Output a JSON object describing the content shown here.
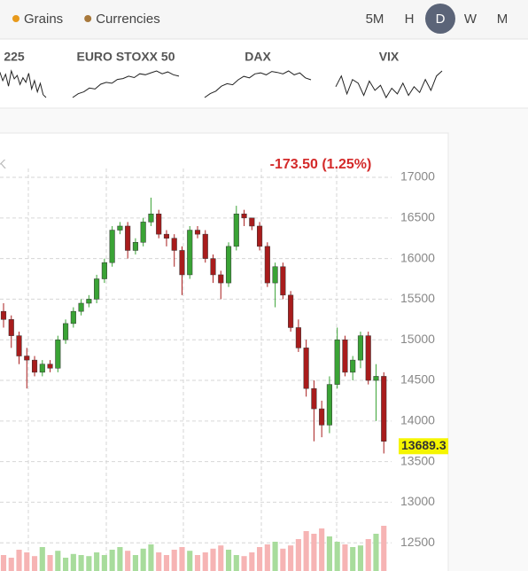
{
  "toolbar": {
    "legend": [
      {
        "label": "Grains",
        "color": "#e89a1c"
      },
      {
        "label": "Currencies",
        "color": "#a8793c"
      }
    ],
    "intervals": [
      "5M",
      "H",
      "D",
      "W",
      "M"
    ],
    "selected": "D"
  },
  "markets": [
    {
      "name": "225",
      "values": [
        50,
        62,
        40,
        70,
        55,
        66,
        45,
        72,
        58,
        64,
        48,
        60,
        52,
        68,
        40,
        55,
        35,
        50,
        30,
        25
      ]
    },
    {
      "name": "EURO STOXX 50",
      "values": [
        10,
        18,
        22,
        30,
        28,
        38,
        42,
        40,
        48,
        50,
        55,
        52,
        60,
        58,
        62,
        66,
        60,
        64,
        58,
        55
      ]
    },
    {
      "name": "DAX",
      "values": [
        12,
        20,
        25,
        35,
        40,
        38,
        48,
        55,
        52,
        60,
        62,
        58,
        65,
        63,
        60,
        66,
        58,
        62,
        52,
        48
      ]
    },
    {
      "name": "VIX",
      "values": [
        40,
        55,
        30,
        50,
        45,
        28,
        48,
        35,
        42,
        25,
        38,
        30,
        45,
        28,
        40,
        32,
        50,
        35,
        55,
        62
      ]
    }
  ],
  "chart_data": {
    "type": "candlestick",
    "title": "K",
    "change": "-173.50 (1.25%)",
    "last_price": 13689.3,
    "up_color": "#3aa335",
    "down_color": "#a81c1c",
    "up_volume_color": "#a8dc9c",
    "down_volume_color": "#f6b4b4",
    "ylim": [
      12153,
      17546
    ],
    "yticks": [
      12500,
      13000,
      13500,
      14000,
      14500,
      15000,
      15500,
      16000,
      16500,
      17000
    ],
    "grid": true,
    "volume_lim": [
      0,
      100
    ],
    "open": [
      15350,
      15250,
      15050,
      14800,
      14750,
      14600,
      14700,
      14650,
      15000,
      15200,
      15350,
      15450,
      15500,
      15750,
      15950,
      16350,
      16400,
      16100,
      16200,
      16450,
      16550,
      16300,
      16250,
      16100,
      15800,
      16350,
      16300,
      16000,
      15800,
      15700,
      16150,
      16550,
      16500,
      16400,
      16150,
      15700,
      15900,
      15550,
      15150,
      14900,
      14400,
      14150,
      13950,
      14450,
      15000,
      14600,
      14750,
      15050,
      14500,
      14550
    ],
    "high": [
      15450,
      15300,
      15100,
      14900,
      14800,
      14750,
      14750,
      15050,
      15250,
      15400,
      15500,
      15550,
      15800,
      16000,
      16400,
      16450,
      16450,
      16250,
      16500,
      16750,
      16600,
      16350,
      16300,
      16150,
      16400,
      16400,
      16350,
      16050,
      15850,
      16200,
      16650,
      16600,
      16500,
      16450,
      16200,
      15950,
      15950,
      15600,
      15250,
      15000,
      14500,
      14250,
      14550,
      15150,
      15050,
      14800,
      15100,
      15100,
      14700,
      14600
    ],
    "low": [
      15150,
      14900,
      14700,
      14400,
      14550,
      14550,
      14600,
      14600,
      14950,
      15150,
      15300,
      15400,
      15450,
      15700,
      15900,
      16300,
      16000,
      16050,
      16150,
      16400,
      16250,
      16150,
      15900,
      15550,
      15750,
      16250,
      15950,
      15700,
      15500,
      15650,
      16100,
      16400,
      16350,
      16100,
      15650,
      15400,
      15500,
      15100,
      14850,
      14300,
      13750,
      13800,
      13850,
      14400,
      14550,
      14500,
      14650,
      14450,
      14000,
      13600
    ],
    "close": [
      15250,
      15050,
      14800,
      14750,
      14600,
      14700,
      14650,
      15000,
      15200,
      15350,
      15450,
      15500,
      15750,
      15950,
      16350,
      16400,
      16100,
      16200,
      16450,
      16550,
      16300,
      16250,
      16100,
      15800,
      16350,
      16300,
      16000,
      15800,
      15700,
      16150,
      16550,
      16500,
      16400,
      16150,
      15700,
      15900,
      15550,
      15150,
      14900,
      14400,
      14150,
      13950,
      14450,
      15000,
      14600,
      14750,
      15050,
      14500,
      14550,
      13750
    ],
    "volume": [
      30,
      25,
      40,
      35,
      28,
      45,
      30,
      38,
      25,
      32,
      30,
      28,
      35,
      30,
      40,
      45,
      38,
      30,
      42,
      50,
      35,
      30,
      40,
      45,
      38,
      30,
      35,
      42,
      48,
      40,
      30,
      28,
      35,
      45,
      50,
      55,
      42,
      48,
      60,
      75,
      70,
      80,
      65,
      55,
      50,
      45,
      48,
      60,
      70,
      85
    ]
  }
}
